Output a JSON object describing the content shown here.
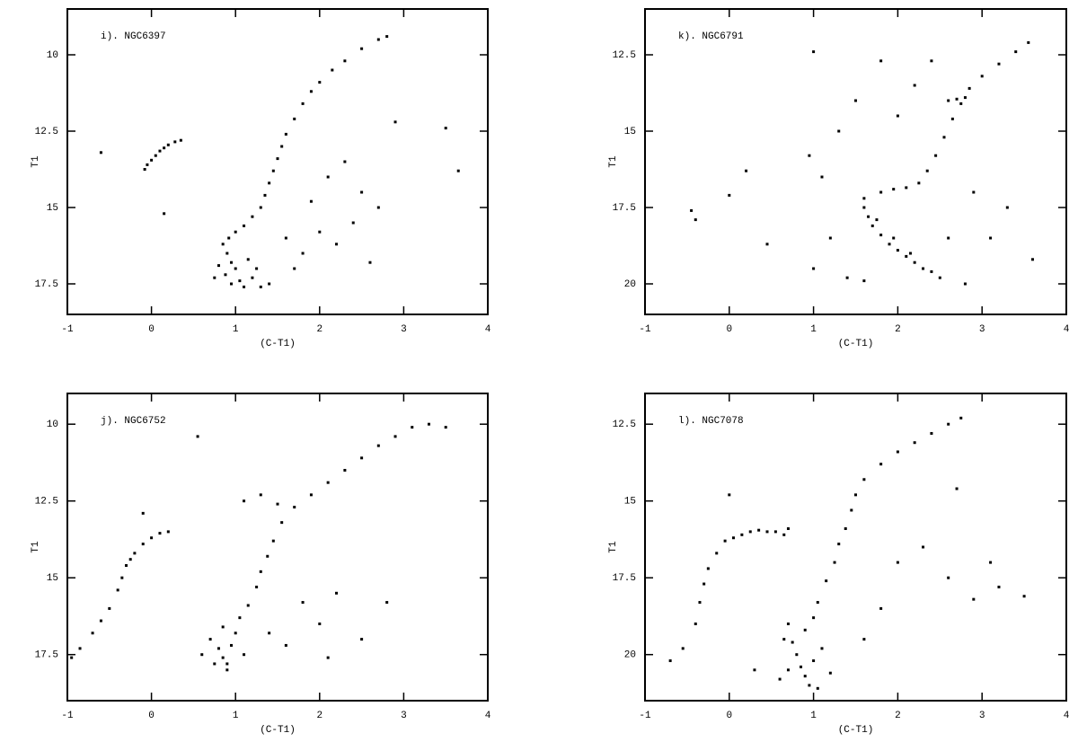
{
  "chart_data": [
    {
      "type": "scatter",
      "title": "i). NGC6397",
      "xlabel": "(C-T1)",
      "ylabel": "T1",
      "color": "#000000",
      "xlim": [
        -1,
        4
      ],
      "xticks": [
        -1,
        0,
        1,
        2,
        3,
        4
      ],
      "ylim": [
        18.5,
        8.5
      ],
      "yticks": [
        10,
        12.5,
        15,
        17.5
      ],
      "x": [
        -0.08,
        -0.05,
        0,
        0.05,
        0.1,
        0.15,
        0.2,
        0.28,
        0.35,
        0.85,
        0.9,
        0.95,
        1.0,
        0.88,
        1.05,
        1.1,
        0.95,
        0.8,
        1.2,
        1.3,
        1.15,
        0.92,
        1.0,
        1.1,
        1.25,
        0.75,
        1.4,
        1.2,
        1.3,
        1.35,
        1.4,
        1.45,
        1.5,
        1.55,
        1.6,
        1.7,
        1.8,
        1.9,
        2.0,
        2.15,
        2.3,
        2.5,
        2.7,
        2.8,
        1.6,
        1.8,
        2.0,
        2.2,
        2.4,
        1.9,
        2.1,
        2.3,
        2.5,
        1.7,
        2.6,
        3.65,
        3.5,
        2.9,
        -0.6,
        0.15,
        2.7
      ],
      "values": [
        13.75,
        13.6,
        13.45,
        13.3,
        13.15,
        13.05,
        12.95,
        12.85,
        12.8,
        16.2,
        16.5,
        16.8,
        17.0,
        17.2,
        17.4,
        17.6,
        17.5,
        16.9,
        17.3,
        17.6,
        16.7,
        16.0,
        15.8,
        15.6,
        17.0,
        17.3,
        17.5,
        15.3,
        15.0,
        14.6,
        14.2,
        13.8,
        13.4,
        13.0,
        12.6,
        12.1,
        11.6,
        11.2,
        10.9,
        10.5,
        10.2,
        9.8,
        9.5,
        9.4,
        16.0,
        16.5,
        15.8,
        16.2,
        15.5,
        14.8,
        14.0,
        13.5,
        14.5,
        17.0,
        16.8,
        13.8,
        12.4,
        12.2,
        13.2,
        15.2,
        15.0
      ]
    },
    {
      "type": "scatter",
      "title": "k). NGC6791",
      "xlabel": "(C-T1)",
      "ylabel": "T1",
      "color": "#000000",
      "xlim": [
        -1,
        4
      ],
      "xticks": [
        -1,
        0,
        1,
        2,
        3,
        4
      ],
      "ylim": [
        21,
        11
      ],
      "yticks": [
        12.5,
        15,
        17.5,
        20
      ],
      "x": [
        1.6,
        1.65,
        1.7,
        1.8,
        1.9,
        2.0,
        2.1,
        2.2,
        2.3,
        2.4,
        2.5,
        1.75,
        1.95,
        2.15,
        1.6,
        1.8,
        1.95,
        2.1,
        2.25,
        2.35,
        2.45,
        2.55,
        2.65,
        2.75,
        2.85,
        3.0,
        3.2,
        3.4,
        3.55,
        2.6,
        2.7,
        2.8,
        1.0,
        1.2,
        1.1,
        1.3,
        1.5,
        1.4,
        2.0,
        2.2,
        1.8,
        2.6,
        2.9,
        3.1,
        2.8,
        3.3,
        0.95,
        1.6,
        1.0,
        -0.4,
        -0.45,
        0.2,
        0.45,
        0.0,
        3.6,
        2.4
      ],
      "values": [
        17.5,
        17.8,
        18.1,
        18.4,
        18.7,
        18.9,
        19.1,
        19.3,
        19.5,
        19.6,
        19.8,
        17.9,
        18.5,
        19.0,
        17.2,
        17.0,
        16.9,
        16.85,
        16.7,
        16.3,
        15.8,
        15.2,
        14.6,
        14.1,
        13.6,
        13.2,
        12.8,
        12.4,
        12.1,
        14.0,
        13.95,
        13.9,
        19.5,
        18.5,
        16.5,
        15.0,
        14.0,
        19.8,
        14.5,
        13.5,
        12.7,
        18.5,
        17.0,
        18.5,
        20.0,
        17.5,
        15.8,
        19.9,
        12.4,
        17.9,
        17.6,
        16.3,
        18.7,
        17.1,
        19.2,
        12.7
      ]
    },
    {
      "type": "scatter",
      "title": "j). NGC6752",
      "xlabel": "(C-T1)",
      "ylabel": "T1",
      "color": "#000000",
      "xlim": [
        -1,
        4
      ],
      "xticks": [
        -1,
        0,
        1,
        2,
        3,
        4
      ],
      "ylim": [
        19,
        9
      ],
      "yticks": [
        10,
        12.5,
        15,
        17.5
      ],
      "x": [
        -0.95,
        -0.85,
        -0.7,
        -0.6,
        -0.5,
        -0.4,
        -0.35,
        -0.3,
        -0.2,
        -0.1,
        0.0,
        0.1,
        0.2,
        -0.25,
        0.7,
        0.8,
        0.85,
        0.9,
        0.75,
        0.95,
        1.0,
        0.6,
        1.1,
        0.85,
        1.05,
        0.9,
        1.15,
        1.25,
        1.3,
        1.38,
        1.45,
        1.55,
        1.7,
        1.9,
        2.1,
        2.3,
        2.5,
        2.7,
        2.9,
        3.1,
        3.3,
        3.5,
        1.1,
        1.3,
        1.5,
        1.8,
        2.0,
        2.2,
        2.5,
        1.6,
        0.55,
        -0.1,
        2.1,
        1.4,
        2.8
      ],
      "values": [
        17.6,
        17.3,
        16.8,
        16.4,
        16.0,
        15.4,
        15.0,
        14.6,
        14.2,
        13.9,
        13.7,
        13.55,
        13.5,
        14.4,
        17.0,
        17.3,
        17.6,
        17.8,
        17.8,
        17.2,
        16.8,
        17.5,
        17.5,
        16.6,
        16.3,
        18.0,
        15.9,
        15.3,
        14.8,
        14.3,
        13.8,
        13.2,
        12.7,
        12.3,
        11.9,
        11.5,
        11.1,
        10.7,
        10.4,
        10.1,
        10.0,
        10.1,
        12.5,
        12.3,
        12.6,
        15.8,
        16.5,
        15.5,
        17.0,
        17.2,
        10.4,
        12.9,
        17.6,
        16.8,
        15.8
      ]
    },
    {
      "type": "scatter",
      "title": "l). NGC7078",
      "xlabel": "(C-T1)",
      "ylabel": "T1",
      "color": "#000000",
      "xlim": [
        -1,
        4
      ],
      "xticks": [
        -1,
        0,
        1,
        2,
        3,
        4
      ],
      "ylim": [
        21.5,
        11.5
      ],
      "yticks": [
        12.5,
        15,
        17.5,
        20
      ],
      "x": [
        -0.7,
        -0.55,
        -0.4,
        -0.35,
        -0.3,
        -0.25,
        -0.15,
        -0.05,
        0.05,
        0.15,
        0.25,
        0.35,
        0.45,
        0.55,
        0.65,
        0.7,
        0.7,
        0.75,
        0.8,
        0.85,
        0.9,
        0.95,
        0.7,
        1.0,
        1.1,
        0.65,
        0.9,
        1.0,
        1.05,
        0.6,
        1.2,
        1.05,
        1.15,
        1.25,
        1.3,
        1.38,
        1.45,
        1.5,
        1.6,
        1.8,
        2.0,
        2.2,
        2.4,
        2.6,
        2.75,
        2.0,
        2.3,
        2.6,
        2.9,
        3.2,
        3.1,
        3.5,
        1.8,
        0.3,
        1.6,
        2.7,
        0.0
      ],
      "values": [
        20.2,
        19.8,
        19.0,
        18.3,
        17.7,
        17.2,
        16.7,
        16.3,
        16.2,
        16.1,
        16.0,
        15.95,
        16.0,
        16.0,
        16.1,
        15.9,
        19.0,
        19.6,
        20.0,
        20.4,
        20.7,
        21.0,
        20.5,
        20.2,
        19.8,
        19.5,
        19.2,
        18.8,
        21.1,
        20.8,
        20.6,
        18.3,
        17.6,
        17.0,
        16.4,
        15.9,
        15.3,
        14.8,
        14.3,
        13.8,
        13.4,
        13.1,
        12.8,
        12.5,
        12.3,
        17.0,
        16.5,
        17.5,
        18.2,
        17.8,
        17.0,
        18.1,
        18.5,
        20.5,
        19.5,
        14.6,
        14.8
      ]
    }
  ]
}
